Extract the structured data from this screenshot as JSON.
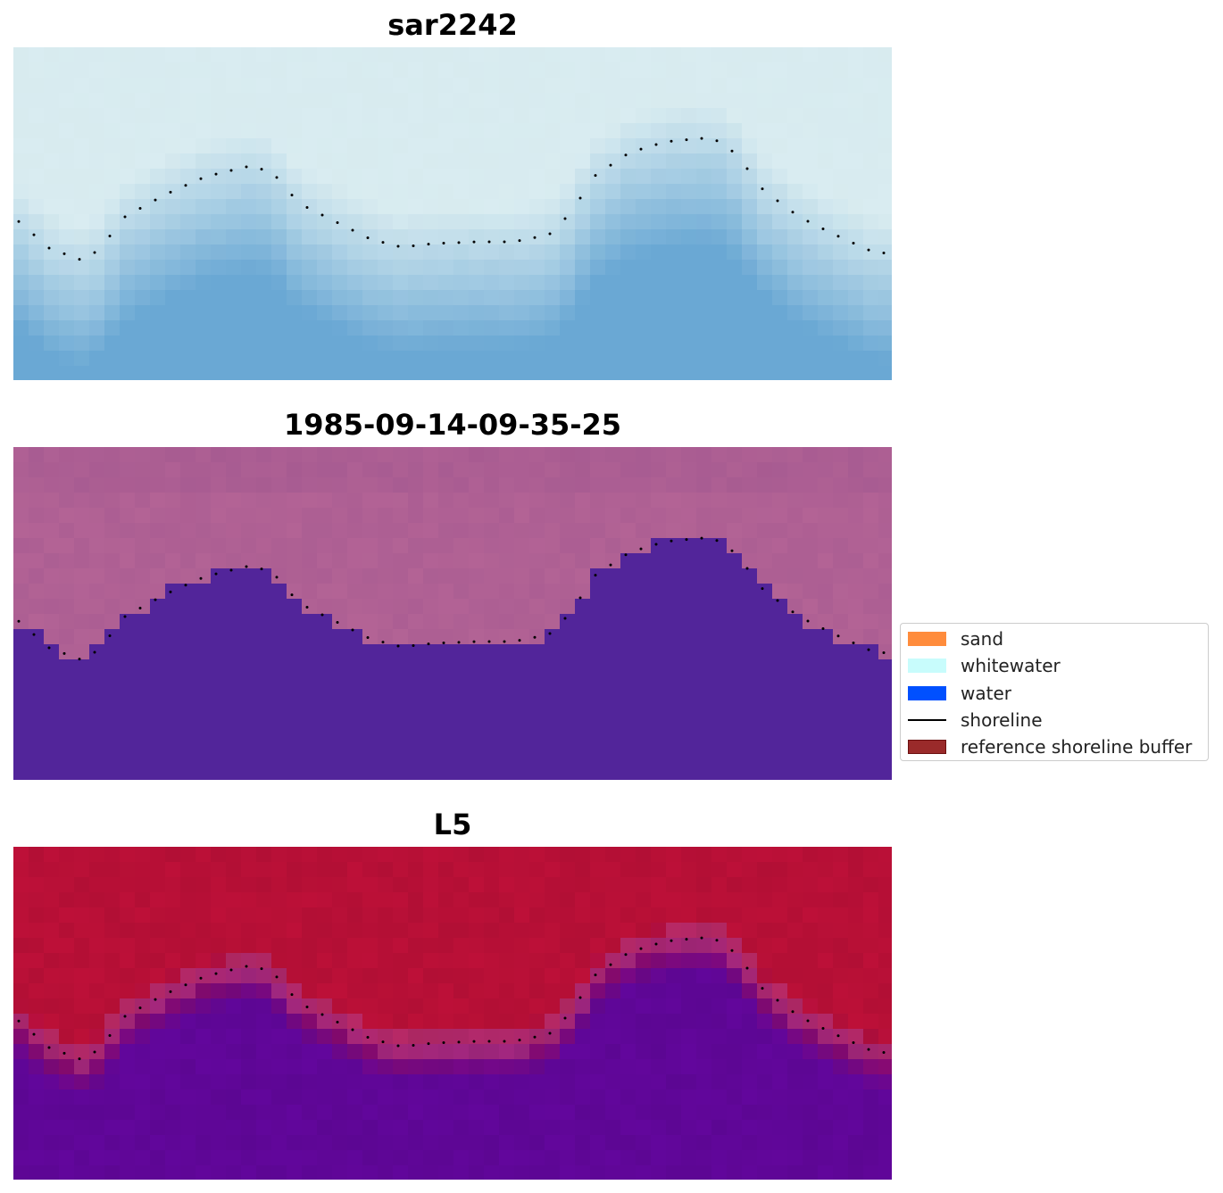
{
  "panels": [
    {
      "id": "rgb",
      "title": "sar2242"
    },
    {
      "id": "classified",
      "title": "1985-09-14-09-35-25"
    },
    {
      "id": "probability",
      "title": "L5"
    }
  ],
  "legend": {
    "items": [
      {
        "label": "sand",
        "kind": "patch",
        "color": "#ff8c3c"
      },
      {
        "label": "whitewater",
        "kind": "patch",
        "color": "#c8fcfc"
      },
      {
        "label": "water",
        "kind": "patch",
        "color": "#0050ff"
      },
      {
        "label": "shoreline",
        "kind": "line",
        "color": "#000000"
      },
      {
        "label": "reference shoreline buffer",
        "kind": "patch",
        "color": "#9a2a2a"
      }
    ]
  },
  "colors": {
    "rgb_land": "#d8ebef",
    "rgb_water": "#6aa8d4",
    "class_land": "#b36395",
    "class_water": "#52259a",
    "prob_land": "#bd1038",
    "prob_water": "#62069c",
    "shoreline_dots": "#000000"
  }
}
